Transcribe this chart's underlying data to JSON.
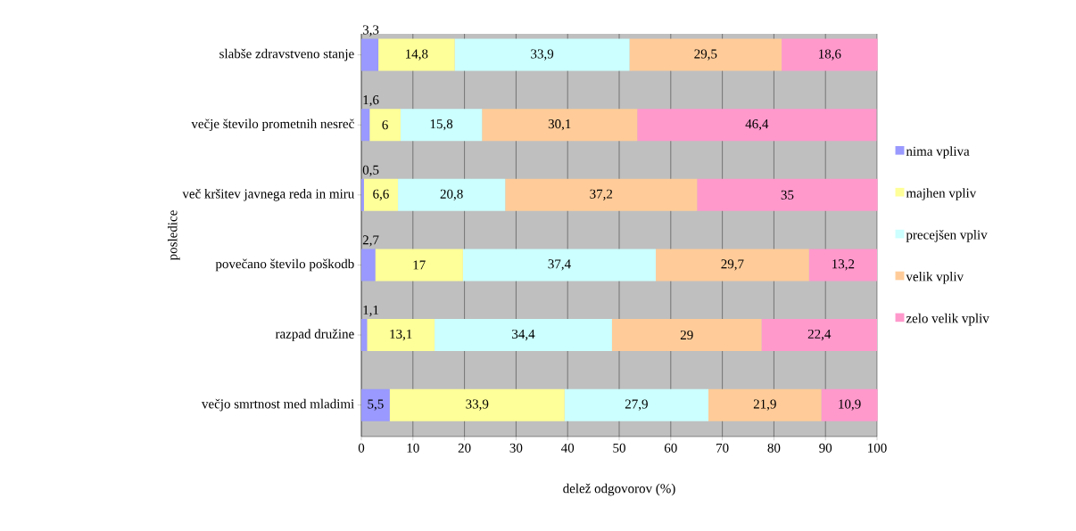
{
  "chart_data": {
    "type": "bar",
    "orientation": "horizontal",
    "stacked": true,
    "categories": [
      "slabše zdravstveno stanje",
      "večje število prometnih nesreč",
      "več kršitev javnega reda in miru",
      "povečano število poškodb",
      "razpad družine",
      "večjo smrtnost med mladimi"
    ],
    "series": [
      {
        "name": "nima vpliva",
        "color": "#9999ff",
        "values": [
          3.3,
          1.6,
          0.5,
          2.7,
          1.1,
          5.5
        ],
        "value_labels": [
          "3,3",
          "1,6",
          "0,5",
          "2,7",
          "1,1",
          "5,5"
        ]
      },
      {
        "name": "majhen vpliv",
        "color": "#ffff99",
        "values": [
          14.8,
          6,
          6.6,
          17,
          13.1,
          33.9
        ],
        "value_labels": [
          "14,8",
          "6",
          "6,6",
          "17",
          "13,1",
          "33,9"
        ]
      },
      {
        "name": "precejšen vpliv",
        "color": "#ccffff",
        "values": [
          33.9,
          15.8,
          20.8,
          37.4,
          34.4,
          27.9
        ],
        "value_labels": [
          "33,9",
          "15,8",
          "20,8",
          "37,4",
          "34,4",
          "27,9"
        ]
      },
      {
        "name": "velik vpliv",
        "color": "#ffcc99",
        "values": [
          29.5,
          30.1,
          37.2,
          29.7,
          29,
          21.9
        ],
        "value_labels": [
          "29,5",
          "30,1",
          "37,2",
          "29,7",
          "29",
          "21,9"
        ]
      },
      {
        "name": "zelo velik vpliv",
        "color": "#ff99cc",
        "values": [
          18.6,
          46.4,
          35,
          13.2,
          22.4,
          10.9
        ],
        "value_labels": [
          "18,6",
          "46,4",
          "35",
          "13,2",
          "22,4",
          "10,9"
        ]
      }
    ],
    "xlim": [
      0,
      100
    ],
    "xticks": [
      0,
      10,
      20,
      30,
      40,
      50,
      60,
      70,
      80,
      90,
      100
    ],
    "xlabel": "delež odgovorov (%)",
    "ylabel": "posledice",
    "grid": "x",
    "legend": "right"
  }
}
